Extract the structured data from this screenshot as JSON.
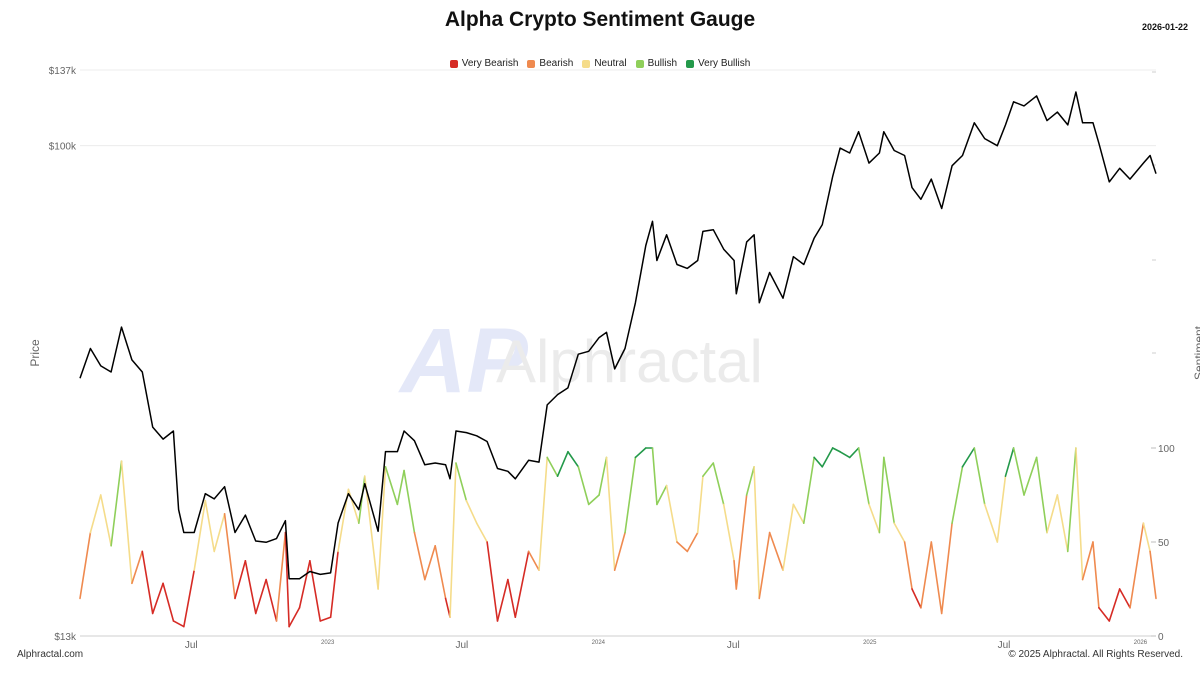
{
  "header": {
    "title": "Alpha Crypto Sentiment Gauge",
    "date": "2026-01-22"
  },
  "footer": {
    "left": "Alphractal.com",
    "right": "© 2025 Alphractal. All Rights Reserved."
  },
  "watermark": {
    "logo_text": "AP",
    "brand": "Alphractal"
  },
  "legend": [
    {
      "label": "Very Bearish",
      "color": "#d62b25"
    },
    {
      "label": "Bearish",
      "color": "#ef8a4f"
    },
    {
      "label": "Neutral",
      "color": "#f5dc8a"
    },
    {
      "label": "Bullish",
      "color": "#8fcf5a"
    },
    {
      "label": "Very Bullish",
      "color": "#23994a"
    }
  ],
  "chart_data": {
    "type": "line",
    "title": "Alpha Crypto Sentiment Gauge",
    "x_range": [
      "2022-02-01",
      "2026-01-22"
    ],
    "x_tick_labels": [
      {
        "label": "Jul",
        "date": "2022-07-01"
      },
      {
        "label": "2023",
        "date": "2023-01-01"
      },
      {
        "label": "Jul",
        "date": "2023-07-01"
      },
      {
        "label": "2024",
        "date": "2024-01-01"
      },
      {
        "label": "Jul",
        "date": "2024-07-01"
      },
      {
        "label": "2025",
        "date": "2025-01-01"
      },
      {
        "label": "Jul",
        "date": "2025-07-01"
      },
      {
        "label": "2026",
        "date": "2026-01-01"
      }
    ],
    "y_left": {
      "label": "Price",
      "scale": "log",
      "range": [
        13000,
        137000
      ],
      "tick_labels": [
        {
          "label": "$13k",
          "value": 13000
        },
        {
          "label": "$100k",
          "value": 100000
        },
        {
          "label": "$137k",
          "value": 137000
        }
      ]
    },
    "y_right": {
      "label": "Sentiment",
      "range": [
        0,
        100
      ],
      "tick_labels": [
        {
          "label": "0",
          "value": 0
        },
        {
          "label": "50",
          "value": 50
        },
        {
          "label": "100",
          "value": 100
        }
      ]
    },
    "sentiment_bands": [
      {
        "name": "Very Bearish",
        "min": 0,
        "max": 30
      },
      {
        "name": "Bearish",
        "min": 30,
        "max": 50
      },
      {
        "name": "Neutral",
        "min": 50,
        "max": 70
      },
      {
        "name": "Bullish",
        "min": 70,
        "max": 90
      },
      {
        "name": "Very Bullish",
        "min": 90,
        "max": 100
      }
    ],
    "series": [
      {
        "name": "Price",
        "color": "#000000",
        "points": [
          [
            "2022-02-01",
            38000
          ],
          [
            "2022-02-15",
            43000
          ],
          [
            "2022-03-01",
            40000
          ],
          [
            "2022-03-15",
            39000
          ],
          [
            "2022-03-29",
            47000
          ],
          [
            "2022-04-12",
            41000
          ],
          [
            "2022-04-26",
            39000
          ],
          [
            "2022-05-10",
            31000
          ],
          [
            "2022-05-24",
            29500
          ],
          [
            "2022-06-07",
            30500
          ],
          [
            "2022-06-14",
            22000
          ],
          [
            "2022-06-21",
            20000
          ],
          [
            "2022-07-05",
            20000
          ],
          [
            "2022-07-20",
            23500
          ],
          [
            "2022-08-01",
            23000
          ],
          [
            "2022-08-15",
            24200
          ],
          [
            "2022-08-29",
            20000
          ],
          [
            "2022-09-12",
            21500
          ],
          [
            "2022-09-26",
            19300
          ],
          [
            "2022-10-10",
            19200
          ],
          [
            "2022-10-24",
            19500
          ],
          [
            "2022-11-05",
            21000
          ],
          [
            "2022-11-10",
            16500
          ],
          [
            "2022-11-24",
            16500
          ],
          [
            "2022-12-08",
            17000
          ],
          [
            "2022-12-22",
            16800
          ],
          [
            "2023-01-05",
            16900
          ],
          [
            "2023-01-15",
            20800
          ],
          [
            "2023-01-29",
            23500
          ],
          [
            "2023-02-12",
            22000
          ],
          [
            "2023-02-20",
            24500
          ],
          [
            "2023-03-10",
            20100
          ],
          [
            "2023-03-20",
            28000
          ],
          [
            "2023-04-05",
            28000
          ],
          [
            "2023-04-14",
            30500
          ],
          [
            "2023-04-28",
            29300
          ],
          [
            "2023-05-12",
            26500
          ],
          [
            "2023-05-26",
            26700
          ],
          [
            "2023-06-09",
            26500
          ],
          [
            "2023-06-15",
            25000
          ],
          [
            "2023-06-23",
            30500
          ],
          [
            "2023-07-07",
            30300
          ],
          [
            "2023-07-21",
            29900
          ],
          [
            "2023-08-04",
            29200
          ],
          [
            "2023-08-18",
            26100
          ],
          [
            "2023-09-01",
            25800
          ],
          [
            "2023-09-11",
            25000
          ],
          [
            "2023-09-29",
            27000
          ],
          [
            "2023-10-13",
            26800
          ],
          [
            "2023-10-24",
            34000
          ],
          [
            "2023-11-07",
            35500
          ],
          [
            "2023-11-21",
            36500
          ],
          [
            "2023-12-05",
            42000
          ],
          [
            "2023-12-19",
            42500
          ],
          [
            "2024-01-02",
            45000
          ],
          [
            "2024-01-12",
            46000
          ],
          [
            "2024-01-23",
            39500
          ],
          [
            "2024-02-06",
            43000
          ],
          [
            "2024-02-20",
            52000
          ],
          [
            "2024-03-05",
            66000
          ],
          [
            "2024-03-14",
            73000
          ],
          [
            "2024-03-20",
            62000
          ],
          [
            "2024-04-02",
            69000
          ],
          [
            "2024-04-16",
            61000
          ],
          [
            "2024-04-30",
            60000
          ],
          [
            "2024-05-14",
            62000
          ],
          [
            "2024-05-21",
            70000
          ],
          [
            "2024-06-04",
            70500
          ],
          [
            "2024-06-18",
            65000
          ],
          [
            "2024-07-02",
            62000
          ],
          [
            "2024-07-05",
            54000
          ],
          [
            "2024-07-19",
            67000
          ],
          [
            "2024-07-29",
            69000
          ],
          [
            "2024-08-05",
            52000
          ],
          [
            "2024-08-19",
            59000
          ],
          [
            "2024-09-06",
            53000
          ],
          [
            "2024-09-20",
            63000
          ],
          [
            "2024-10-04",
            61000
          ],
          [
            "2024-10-18",
            68000
          ],
          [
            "2024-10-29",
            72000
          ],
          [
            "2024-11-12",
            88000
          ],
          [
            "2024-11-22",
            99000
          ],
          [
            "2024-12-05",
            97000
          ],
          [
            "2024-12-17",
            106000
          ],
          [
            "2024-12-31",
            93000
          ],
          [
            "2025-01-14",
            97000
          ],
          [
            "2025-01-20",
            106000
          ],
          [
            "2025-02-03",
            98000
          ],
          [
            "2025-02-17",
            96000
          ],
          [
            "2025-02-27",
            84000
          ],
          [
            "2025-03-11",
            80000
          ],
          [
            "2025-03-25",
            87000
          ],
          [
            "2025-04-08",
            77000
          ],
          [
            "2025-04-22",
            92000
          ],
          [
            "2025-05-06",
            96000
          ],
          [
            "2025-05-22",
            110000
          ],
          [
            "2025-06-05",
            103000
          ],
          [
            "2025-06-22",
            100000
          ],
          [
            "2025-07-03",
            109000
          ],
          [
            "2025-07-14",
            120000
          ],
          [
            "2025-07-28",
            118000
          ],
          [
            "2025-08-14",
            123000
          ],
          [
            "2025-08-28",
            111000
          ],
          [
            "2025-09-11",
            115000
          ],
          [
            "2025-09-25",
            109000
          ],
          [
            "2025-10-06",
            125000
          ],
          [
            "2025-10-15",
            110000
          ],
          [
            "2025-10-29",
            110000
          ],
          [
            "2025-11-06",
            101000
          ],
          [
            "2025-11-20",
            86000
          ],
          [
            "2025-12-04",
            91000
          ],
          [
            "2025-12-18",
            87000
          ],
          [
            "2026-01-05",
            93000
          ],
          [
            "2026-01-14",
            96000
          ],
          [
            "2026-01-22",
            89000
          ]
        ]
      },
      {
        "name": "Sentiment",
        "points": [
          [
            "2022-02-01",
            20
          ],
          [
            "2022-02-15",
            55
          ],
          [
            "2022-03-01",
            75
          ],
          [
            "2022-03-15",
            48
          ],
          [
            "2022-03-29",
            93
          ],
          [
            "2022-04-12",
            28
          ],
          [
            "2022-04-26",
            45
          ],
          [
            "2022-05-10",
            12
          ],
          [
            "2022-05-24",
            28
          ],
          [
            "2022-06-07",
            8
          ],
          [
            "2022-06-21",
            5
          ],
          [
            "2022-07-05",
            35
          ],
          [
            "2022-07-20",
            72
          ],
          [
            "2022-08-01",
            45
          ],
          [
            "2022-08-15",
            65
          ],
          [
            "2022-08-29",
            20
          ],
          [
            "2022-09-12",
            40
          ],
          [
            "2022-09-26",
            12
          ],
          [
            "2022-10-10",
            30
          ],
          [
            "2022-10-24",
            8
          ],
          [
            "2022-11-05",
            55
          ],
          [
            "2022-11-10",
            5
          ],
          [
            "2022-11-24",
            15
          ],
          [
            "2022-12-08",
            40
          ],
          [
            "2022-12-22",
            8
          ],
          [
            "2023-01-05",
            10
          ],
          [
            "2023-01-15",
            45
          ],
          [
            "2023-01-29",
            78
          ],
          [
            "2023-02-12",
            60
          ],
          [
            "2023-02-20",
            85
          ],
          [
            "2023-03-10",
            25
          ],
          [
            "2023-03-20",
            90
          ],
          [
            "2023-04-05",
            70
          ],
          [
            "2023-04-14",
            88
          ],
          [
            "2023-04-28",
            55
          ],
          [
            "2023-05-12",
            30
          ],
          [
            "2023-05-26",
            48
          ],
          [
            "2023-06-09",
            20
          ],
          [
            "2023-06-15",
            10
          ],
          [
            "2023-06-23",
            92
          ],
          [
            "2023-07-07",
            72
          ],
          [
            "2023-07-21",
            60
          ],
          [
            "2023-08-04",
            50
          ],
          [
            "2023-08-18",
            8
          ],
          [
            "2023-09-01",
            30
          ],
          [
            "2023-09-11",
            10
          ],
          [
            "2023-09-29",
            45
          ],
          [
            "2023-10-13",
            35
          ],
          [
            "2023-10-24",
            95
          ],
          [
            "2023-11-07",
            85
          ],
          [
            "2023-11-21",
            98
          ],
          [
            "2023-12-05",
            90
          ],
          [
            "2023-12-19",
            70
          ],
          [
            "2024-01-02",
            75
          ],
          [
            "2024-01-12",
            95
          ],
          [
            "2024-01-23",
            35
          ],
          [
            "2024-02-06",
            55
          ],
          [
            "2024-02-20",
            95
          ],
          [
            "2024-03-05",
            100
          ],
          [
            "2024-03-14",
            100
          ],
          [
            "2024-03-20",
            70
          ],
          [
            "2024-04-02",
            80
          ],
          [
            "2024-04-16",
            50
          ],
          [
            "2024-04-30",
            45
          ],
          [
            "2024-05-14",
            55
          ],
          [
            "2024-05-21",
            85
          ],
          [
            "2024-06-04",
            92
          ],
          [
            "2024-06-18",
            70
          ],
          [
            "2024-07-02",
            40
          ],
          [
            "2024-07-05",
            25
          ],
          [
            "2024-07-19",
            75
          ],
          [
            "2024-07-29",
            90
          ],
          [
            "2024-08-05",
            20
          ],
          [
            "2024-08-19",
            55
          ],
          [
            "2024-09-06",
            35
          ],
          [
            "2024-09-20",
            70
          ],
          [
            "2024-10-04",
            60
          ],
          [
            "2024-10-18",
            95
          ],
          [
            "2024-10-29",
            90
          ],
          [
            "2024-11-12",
            100
          ],
          [
            "2024-11-22",
            98
          ],
          [
            "2024-12-05",
            95
          ],
          [
            "2024-12-17",
            100
          ],
          [
            "2024-12-31",
            70
          ],
          [
            "2025-01-14",
            55
          ],
          [
            "2025-01-20",
            95
          ],
          [
            "2025-02-03",
            60
          ],
          [
            "2025-02-17",
            50
          ],
          [
            "2025-02-27",
            25
          ],
          [
            "2025-03-11",
            15
          ],
          [
            "2025-03-25",
            50
          ],
          [
            "2025-04-08",
            12
          ],
          [
            "2025-04-22",
            60
          ],
          [
            "2025-05-06",
            90
          ],
          [
            "2025-05-22",
            100
          ],
          [
            "2025-06-05",
            70
          ],
          [
            "2025-06-22",
            50
          ],
          [
            "2025-07-03",
            85
          ],
          [
            "2025-07-14",
            100
          ],
          [
            "2025-07-28",
            75
          ],
          [
            "2025-08-14",
            95
          ],
          [
            "2025-08-28",
            55
          ],
          [
            "2025-09-11",
            75
          ],
          [
            "2025-09-25",
            45
          ],
          [
            "2025-10-06",
            100
          ],
          [
            "2025-10-15",
            30
          ],
          [
            "2025-10-29",
            50
          ],
          [
            "2025-11-06",
            15
          ],
          [
            "2025-11-20",
            8
          ],
          [
            "2025-12-04",
            25
          ],
          [
            "2025-12-18",
            15
          ],
          [
            "2026-01-05",
            60
          ],
          [
            "2026-01-14",
            45
          ],
          [
            "2026-01-22",
            20
          ]
        ]
      }
    ]
  }
}
